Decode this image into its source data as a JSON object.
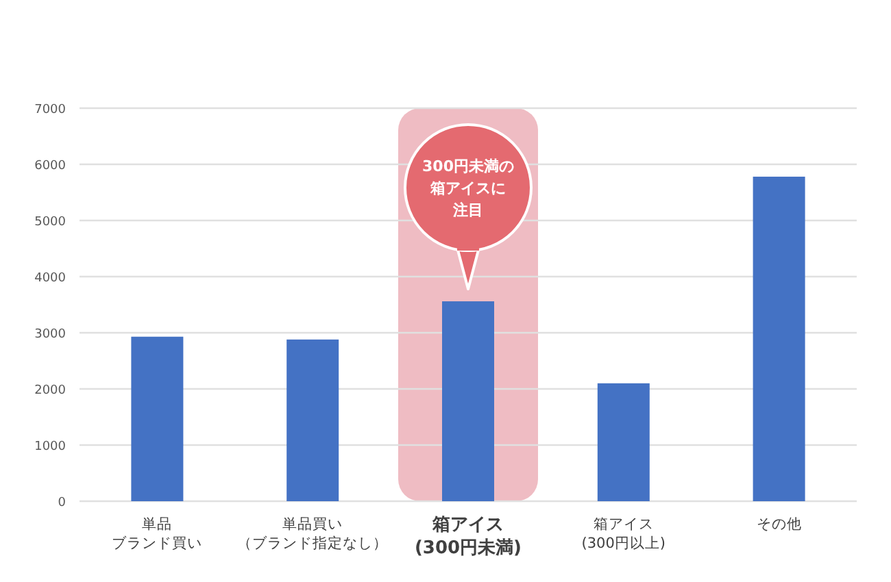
{
  "chart_data": {
    "type": "bar",
    "categories": [
      "単品ブランド買い",
      "単品買い（ブランド指定なし）",
      "箱アイス(300円未満)",
      "箱アイス(300円以上)",
      "その他"
    ],
    "values": [
      2930,
      2880,
      3560,
      2100,
      5780
    ],
    "color": "#4472c4",
    "ylim": [
      0,
      7000
    ],
    "yticks": [
      0,
      1000,
      2000,
      3000,
      4000,
      5000,
      6000,
      7000
    ],
    "grid": "y",
    "bands": [
      {
        "axis": "x",
        "from": "箱アイス(300円未満)",
        "to": "箱アイス(300円未満)",
        "color": "#efbcc3"
      }
    ],
    "annotations": [
      "300円未満の箱アイスに注目"
    ]
  }
}
